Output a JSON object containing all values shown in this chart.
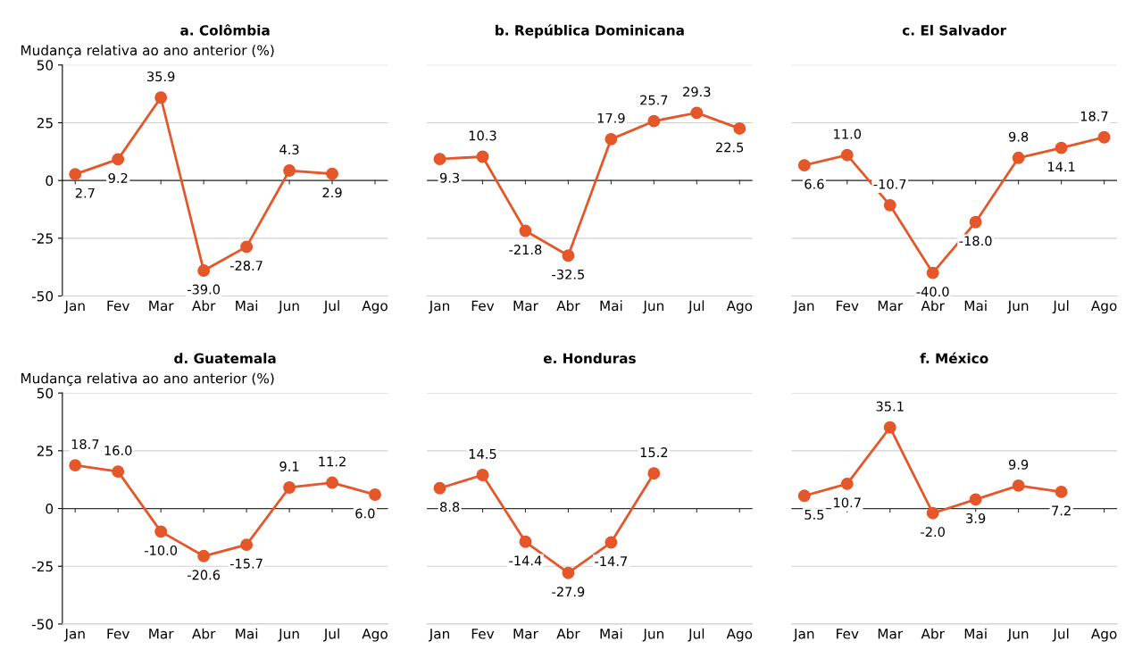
{
  "chart_data": [
    {
      "type": "line",
      "title": "a. Colômbia",
      "ylabel": "Mudança relativa ao ano anterior (%)",
      "categories": [
        "Jan",
        "Fev",
        "Mar",
        "Abr",
        "Mai",
        "Jun",
        "Jul",
        "Ago"
      ],
      "series": [
        {
          "color": "#e3572a",
          "values": [
            2.7,
            9.2,
            35.9,
            -39.0,
            -28.7,
            4.3,
            2.9,
            null
          ],
          "value_labels": [
            "2.7",
            "9.2",
            "35.9",
            "-39.0",
            "-28.7",
            "4.3",
            "2.9",
            null
          ]
        }
      ],
      "ylim": [
        -50,
        50
      ],
      "yticks": [
        -50,
        -25,
        0,
        25,
        50
      ],
      "grid": "y",
      "marker": "circle"
    },
    {
      "type": "line",
      "title": "b. República Dominicana",
      "categories": [
        "Jan",
        "Fev",
        "Mar",
        "Abr",
        "Mai",
        "Jun",
        "Jul",
        "Ago"
      ],
      "series": [
        {
          "color": "#e3572a",
          "values": [
            9.3,
            10.3,
            -21.8,
            -32.5,
            17.9,
            25.7,
            29.3,
            22.5
          ],
          "value_labels": [
            "9.3",
            "10.3",
            "-21.8",
            "-32.5",
            "17.9",
            "25.7",
            "29.3",
            "22.5"
          ]
        }
      ],
      "ylim": [
        -50,
        50
      ],
      "yticks": [
        -50,
        -25,
        0,
        25,
        50
      ],
      "grid": "y",
      "marker": "circle",
      "tick_labels": "x"
    },
    {
      "type": "line",
      "title": "c. El Salvador",
      "categories": [
        "Jan",
        "Fev",
        "Mar",
        "Abr",
        "Mai",
        "Jun",
        "Jul",
        "Ago"
      ],
      "series": [
        {
          "color": "#e3572a",
          "values": [
            6.6,
            11.0,
            -10.7,
            -40.0,
            -18.0,
            9.8,
            14.1,
            18.7
          ],
          "value_labels": [
            "6.6",
            "11.0",
            "-10.7",
            "-40.0",
            "-18.0",
            "9.8",
            "14.1",
            "18.7"
          ]
        }
      ],
      "ylim": [
        -50,
        50
      ],
      "yticks": [
        -50,
        -25,
        0,
        25,
        50
      ],
      "grid": "y",
      "marker": "circle",
      "tick_labels": "x"
    },
    {
      "type": "line",
      "title": "d. Guatemala",
      "ylabel": "Mudança relativa ao ano anterior (%)",
      "categories": [
        "Jan",
        "Fev",
        "Mar",
        "Abr",
        "Mai",
        "Jun",
        "Jul",
        "Ago"
      ],
      "series": [
        {
          "color": "#e3572a",
          "values": [
            18.7,
            16.0,
            -10.0,
            -20.6,
            -15.7,
            9.1,
            11.2,
            6.0
          ],
          "value_labels": [
            "18.7",
            "16.0",
            "-10.0",
            "-20.6",
            "-15.7",
            "9.1",
            "11.2",
            "6.0"
          ]
        }
      ],
      "ylim": [
        -50,
        50
      ],
      "yticks": [
        -50,
        -25,
        0,
        25,
        50
      ],
      "grid": "y",
      "marker": "circle"
    },
    {
      "type": "line",
      "title": "e. Honduras",
      "categories": [
        "Jan",
        "Fev",
        "Mar",
        "Abr",
        "Mai",
        "Jun",
        "Jul",
        "Ago"
      ],
      "series": [
        {
          "color": "#e3572a",
          "values": [
            8.8,
            14.5,
            -14.4,
            -27.9,
            -14.7,
            15.2,
            null,
            null
          ],
          "value_labels": [
            "8.8",
            "14.5",
            "-14.4",
            "-27.9",
            "-14.7",
            "15.2",
            null,
            null
          ]
        }
      ],
      "ylim": [
        -50,
        50
      ],
      "yticks": [
        -50,
        -25,
        0,
        25,
        50
      ],
      "grid": "y",
      "marker": "circle",
      "tick_labels": "x"
    },
    {
      "type": "line",
      "title": "f. México",
      "categories": [
        "Jan",
        "Fev",
        "Mar",
        "Abr",
        "Mai",
        "Jun",
        "Jul",
        "Ago"
      ],
      "series": [
        {
          "color": "#e3572a",
          "values": [
            5.5,
            10.7,
            35.1,
            -2.0,
            3.9,
            9.9,
            7.2,
            null
          ],
          "value_labels": [
            "5.5",
            "10.7",
            "35.1",
            "-2.0",
            "3.9",
            "9.9",
            "7.2",
            null
          ]
        }
      ],
      "ylim": [
        -50,
        50
      ],
      "yticks": [
        -50,
        -25,
        0,
        25,
        50
      ],
      "grid": "y",
      "marker": "circle",
      "tick_labels": "x"
    }
  ]
}
